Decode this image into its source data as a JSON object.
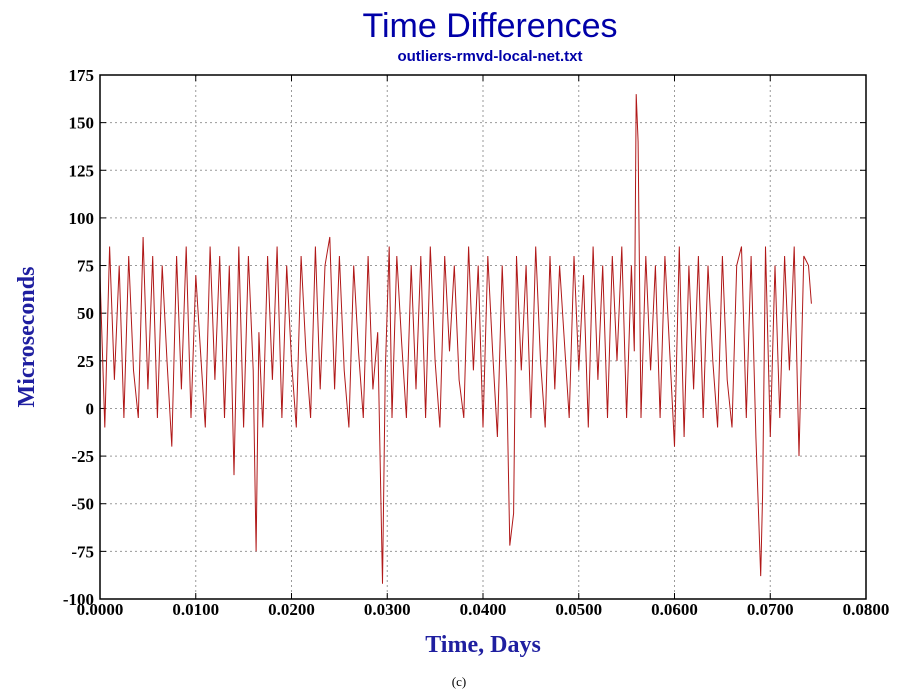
{
  "chart_data": {
    "type": "line",
    "title": "Time Differences",
    "subtitle": "outliers-rmvd-local-net.txt",
    "xlabel": "Time, Days",
    "ylabel": "Microseconds",
    "xlim": [
      0,
      0.08
    ],
    "ylim": [
      -100,
      175
    ],
    "x_ticks": [
      "0.0000",
      "0.0100",
      "0.0200",
      "0.0300",
      "0.0400",
      "0.0500",
      "0.0600",
      "0.0700",
      "0.0800"
    ],
    "y_ticks": [
      "175",
      "150",
      "125",
      "100",
      "75",
      "50",
      "25",
      "0",
      "-25",
      "-50",
      "-75",
      "-100"
    ],
    "grid": true,
    "series": [
      {
        "color": "#b01818",
        "x": [
          0.0,
          0.0005,
          0.001,
          0.0015,
          0.002,
          0.0025,
          0.003,
          0.0035,
          0.004,
          0.0045,
          0.005,
          0.0055,
          0.006,
          0.0065,
          0.007,
          0.0075,
          0.008,
          0.0085,
          0.009,
          0.0095,
          0.01,
          0.0105,
          0.011,
          0.0115,
          0.012,
          0.0125,
          0.013,
          0.0135,
          0.014,
          0.0145,
          0.015,
          0.0155,
          0.016,
          0.0163,
          0.0166,
          0.017,
          0.0175,
          0.018,
          0.0185,
          0.019,
          0.0195,
          0.02,
          0.0205,
          0.021,
          0.0215,
          0.022,
          0.0225,
          0.023,
          0.0235,
          0.024,
          0.0245,
          0.025,
          0.0255,
          0.026,
          0.0265,
          0.027,
          0.0275,
          0.028,
          0.0285,
          0.029,
          0.0295,
          0.0298,
          0.0302,
          0.0305,
          0.031,
          0.0315,
          0.032,
          0.0325,
          0.033,
          0.0335,
          0.034,
          0.0345,
          0.035,
          0.0355,
          0.036,
          0.0365,
          0.037,
          0.0375,
          0.038,
          0.0385,
          0.039,
          0.0395,
          0.04,
          0.0405,
          0.041,
          0.0415,
          0.042,
          0.0425,
          0.0428,
          0.0432,
          0.0435,
          0.044,
          0.0445,
          0.045,
          0.0455,
          0.046,
          0.0465,
          0.047,
          0.0475,
          0.048,
          0.0485,
          0.049,
          0.0495,
          0.05,
          0.0505,
          0.051,
          0.0515,
          0.052,
          0.0525,
          0.053,
          0.0535,
          0.054,
          0.0545,
          0.055,
          0.0555,
          0.0558,
          0.056,
          0.0562,
          0.0565,
          0.057,
          0.0575,
          0.058,
          0.0585,
          0.059,
          0.0595,
          0.06,
          0.0605,
          0.061,
          0.0615,
          0.062,
          0.0625,
          0.063,
          0.0635,
          0.064,
          0.0645,
          0.065,
          0.0655,
          0.066,
          0.0665,
          0.067,
          0.0675,
          0.068,
          0.0685,
          0.069,
          0.0692,
          0.0695,
          0.07,
          0.0705,
          0.071,
          0.0715,
          0.072,
          0.0725,
          0.073,
          0.0735,
          0.074,
          0.0743
        ],
        "y": [
          70,
          -10,
          85,
          15,
          75,
          -5,
          80,
          20,
          -5,
          90,
          10,
          80,
          -5,
          75,
          25,
          -20,
          80,
          10,
          85,
          -5,
          70,
          30,
          -10,
          85,
          15,
          80,
          -5,
          75,
          -35,
          85,
          -10,
          80,
          20,
          -75,
          40,
          -10,
          80,
          15,
          85,
          -5,
          75,
          25,
          -10,
          80,
          30,
          -5,
          85,
          10,
          75,
          90,
          10,
          80,
          20,
          -10,
          75,
          30,
          -5,
          80,
          10,
          40,
          -92,
          20,
          85,
          -5,
          80,
          35,
          -5,
          75,
          10,
          80,
          -5,
          85,
          25,
          -10,
          80,
          30,
          75,
          15,
          -5,
          85,
          20,
          75,
          -10,
          80,
          30,
          -15,
          75,
          10,
          -72,
          -55,
          80,
          20,
          75,
          -5,
          85,
          25,
          -10,
          80,
          10,
          75,
          35,
          -5,
          80,
          20,
          70,
          -10,
          85,
          15,
          75,
          -5,
          80,
          25,
          85,
          -5,
          75,
          30,
          165,
          140,
          -5,
          80,
          20,
          75,
          -5,
          80,
          30,
          -20,
          85,
          -15,
          75,
          10,
          80,
          -5,
          75,
          25,
          -10,
          80,
          15,
          -10,
          75,
          85,
          -5,
          80,
          -15,
          -88,
          -45,
          85,
          -15,
          75,
          -5,
          80,
          20,
          85,
          -25,
          80,
          75,
          55
        ]
      }
    ]
  },
  "caption": "(c)"
}
